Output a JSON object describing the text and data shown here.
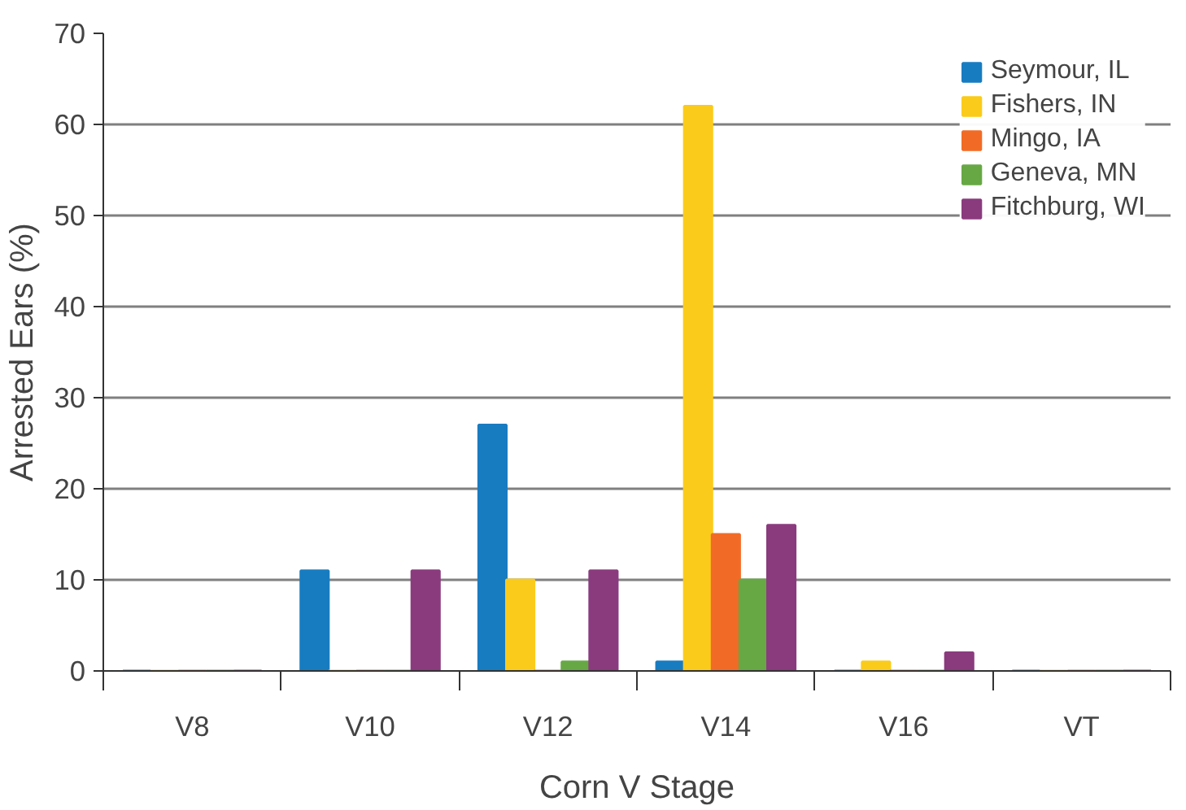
{
  "chart_data": {
    "type": "bar",
    "xlabel": "Corn V Stage",
    "ylabel": "Arrested Ears (%)",
    "categories": [
      "V8",
      "V10",
      "V12",
      "V14",
      "V16",
      "VT"
    ],
    "series": [
      {
        "name": "Seymour, IL",
        "color": "#187cc1",
        "values": [
          0,
          11,
          27,
          1,
          0,
          0
        ]
      },
      {
        "name": "Fishers, IN",
        "color": "#fbcb1b",
        "values": [
          0,
          0,
          10,
          62,
          1,
          0
        ]
      },
      {
        "name": "Mingo, IA",
        "color": "#f26b26",
        "values": [
          0,
          0,
          0,
          15,
          0,
          0
        ]
      },
      {
        "name": "Geneva, MN",
        "color": "#67a845",
        "values": [
          0,
          0,
          1,
          10,
          0,
          0
        ]
      },
      {
        "name": "Fitchburg, WI",
        "color": "#8a3b7e",
        "values": [
          0,
          11,
          11,
          16,
          2,
          0
        ]
      }
    ],
    "ylim": [
      0,
      70
    ],
    "yticks": [
      0,
      10,
      20,
      30,
      40,
      50,
      60,
      70
    ],
    "grid": "y",
    "legend": "top right"
  }
}
